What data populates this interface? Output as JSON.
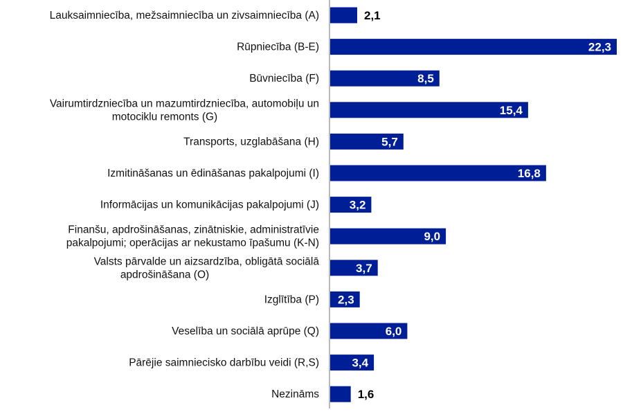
{
  "chart_data": {
    "type": "bar",
    "orientation": "horizontal",
    "title": "",
    "xlabel": "",
    "ylabel": "",
    "xlim": [
      0,
      22.3
    ],
    "grid": false,
    "bar_color": "#001E96",
    "categories": [
      [
        "Lauksaimniecība, mežsaimniecība un zivsaimniecība (A)"
      ],
      [
        "Rūpniecība (B-E)"
      ],
      [
        "Būvniecība (F)"
      ],
      [
        "Vairumtirdzniecība un mazumtirdzniecība, automobiļu un",
        "motociklu remonts (G)"
      ],
      [
        "Transports, uzglabāšana (H)"
      ],
      [
        "Izmitināšanas un ēdināšanas pakalpojumi (I)"
      ],
      [
        "Informācijas un komunikācijas pakalpojumi (J)"
      ],
      [
        "Finanšu, apdrošināšanas, zinātniskie, administratīvie",
        "pakalpojumi; operācijas ar nekustamo īpašumu (K-N)"
      ],
      [
        "Valsts pārvalde un aizsardzība, obligātā sociālā",
        "apdrošināšana (O)"
      ],
      [
        "Izglītība (P)"
      ],
      [
        "Veselība un sociālā aprūpe (Q)"
      ],
      [
        "Pārējie saimniecisko darbību veidi (R,S)"
      ],
      [
        "Nezināms"
      ]
    ],
    "values": [
      2.1,
      22.3,
      8.5,
      15.4,
      5.7,
      16.8,
      3.2,
      9.0,
      3.7,
      2.3,
      6.0,
      3.4,
      1.6
    ],
    "value_labels": [
      "2,1",
      "22,3",
      "8,5",
      "15,4",
      "5,7",
      "16,8",
      "3,2",
      "9,0",
      "3,7",
      "2,3",
      "6,0",
      "3,4",
      "1,6"
    ]
  }
}
